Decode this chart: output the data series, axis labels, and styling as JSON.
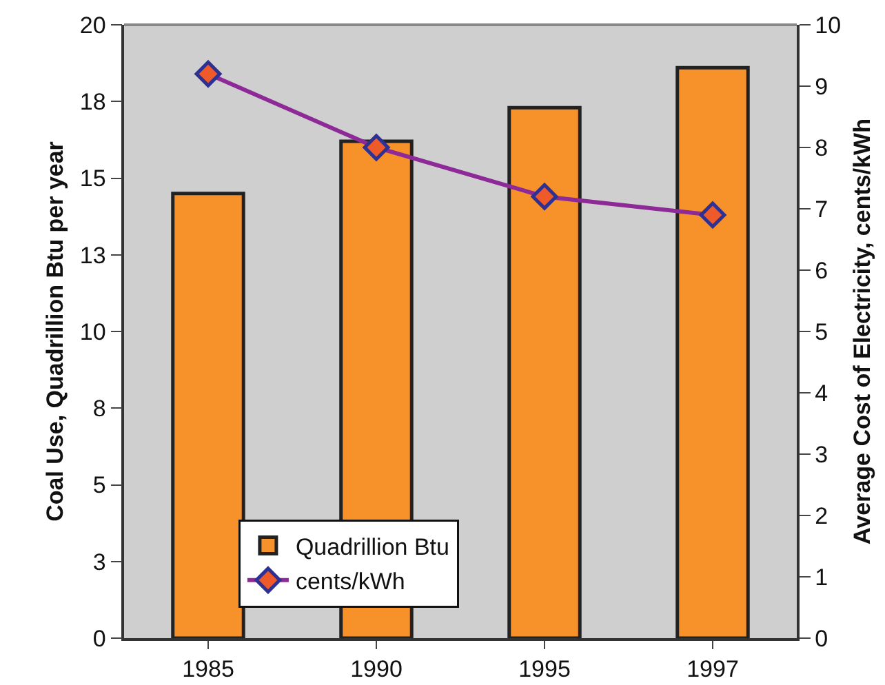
{
  "chart_data": {
    "type": "bar",
    "categories": [
      "1985",
      "1990",
      "1995",
      "1997"
    ],
    "ylabel": "Coal Use, Quadrillion Btu per year",
    "y2label": "Average Cost of Electricity, cents/kWh",
    "series": [
      {
        "name": "Quadrillion Btu",
        "color": "#f7922a",
        "values": [
          14.5,
          16.2,
          17.3,
          18.6
        ]
      },
      {
        "name": "cents/kWh",
        "type": "line",
        "axis": "y2",
        "color": "#8e2a98",
        "values": [
          9.2,
          8.0,
          7.2,
          6.9
        ]
      }
    ],
    "ylim": [
      0,
      20
    ],
    "yticks": [
      0,
      {
        "value": 2.5,
        "label": "3"
      },
      5,
      {
        "value": 7.5,
        "label": "8"
      },
      10,
      {
        "value": 12.5,
        "label": "13"
      },
      15,
      {
        "value": 17.5,
        "label": "18"
      },
      20
    ],
    "y2lim": [
      0,
      10
    ],
    "y2ticks": [
      0,
      1,
      2,
      3,
      4,
      5,
      6,
      7,
      8,
      9,
      10
    ],
    "grid": false,
    "legend": "bottom left",
    "marker": "diamond",
    "line_style": "solid"
  }
}
